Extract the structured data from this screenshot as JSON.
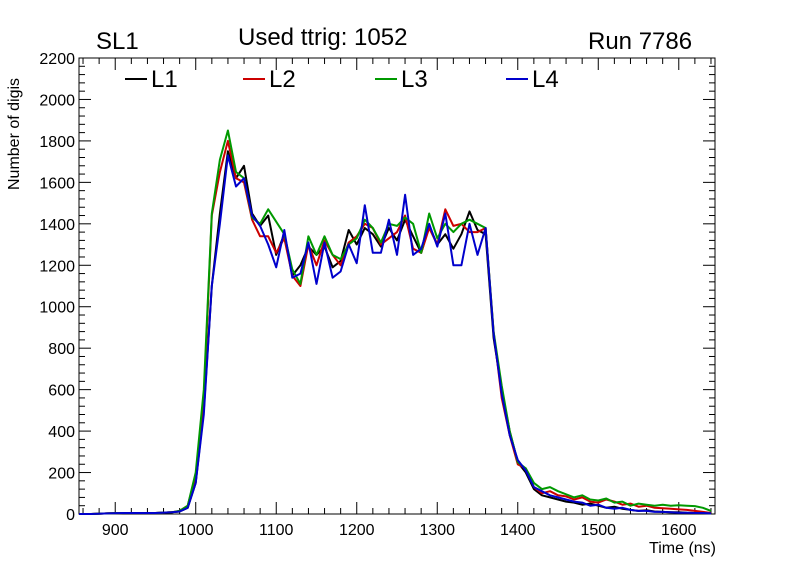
{
  "header": {
    "left": "SL1",
    "center": "Used ttrig: 1052",
    "right": "Run 7786"
  },
  "chart_data": {
    "type": "line",
    "xlabel": "Time (ns)",
    "ylabel": "Number of digis",
    "xlim": [
      855,
      1645
    ],
    "ylim": [
      0,
      2200
    ],
    "xticks": [
      900,
      1000,
      1100,
      1200,
      1300,
      1400,
      1500,
      1600
    ],
    "yticks": [
      0,
      200,
      400,
      600,
      800,
      1000,
      1200,
      1400,
      1600,
      1800,
      2000,
      2200
    ],
    "legend_position": "top-left",
    "series": [
      {
        "name": "L1",
        "color": "#000000",
        "x": [
          855,
          870,
          890,
          910,
          930,
          950,
          970,
          980,
          990,
          1000,
          1010,
          1020,
          1030,
          1040,
          1050,
          1060,
          1070,
          1080,
          1090,
          1100,
          1110,
          1120,
          1130,
          1140,
          1150,
          1160,
          1170,
          1180,
          1190,
          1200,
          1210,
          1220,
          1230,
          1240,
          1250,
          1260,
          1270,
          1280,
          1290,
          1300,
          1310,
          1320,
          1330,
          1340,
          1350,
          1360,
          1370,
          1380,
          1390,
          1400,
          1410,
          1420,
          1430,
          1440,
          1450,
          1460,
          1470,
          1480,
          1490,
          1500,
          1510,
          1520,
          1530,
          1540,
          1550,
          1560,
          1570,
          1580,
          1590,
          1600,
          1610,
          1620,
          1630,
          1640
        ],
        "y": [
          0,
          0,
          3,
          5,
          5,
          5,
          8,
          12,
          30,
          150,
          500,
          1100,
          1450,
          1750,
          1620,
          1680,
          1450,
          1390,
          1440,
          1250,
          1350,
          1150,
          1200,
          1290,
          1250,
          1290,
          1190,
          1220,
          1370,
          1300,
          1380,
          1350,
          1290,
          1380,
          1320,
          1420,
          1340,
          1260,
          1390,
          1300,
          1350,
          1280,
          1350,
          1460,
          1370,
          1350,
          850,
          600,
          400,
          250,
          200,
          120,
          90,
          80,
          70,
          60,
          55,
          45,
          50,
          40,
          30,
          35,
          25,
          20,
          15,
          18,
          12,
          10,
          8,
          8,
          6,
          5,
          5,
          3
        ]
      },
      {
        "name": "L2",
        "color": "#cc0000",
        "x": [
          855,
          870,
          890,
          910,
          930,
          950,
          970,
          980,
          990,
          1000,
          1010,
          1020,
          1030,
          1040,
          1050,
          1060,
          1070,
          1080,
          1090,
          1100,
          1110,
          1120,
          1130,
          1140,
          1150,
          1160,
          1170,
          1180,
          1190,
          1200,
          1210,
          1220,
          1230,
          1240,
          1250,
          1260,
          1270,
          1280,
          1290,
          1300,
          1310,
          1320,
          1330,
          1340,
          1350,
          1360,
          1370,
          1380,
          1390,
          1400,
          1410,
          1420,
          1430,
          1440,
          1450,
          1460,
          1470,
          1480,
          1490,
          1500,
          1510,
          1520,
          1530,
          1540,
          1550,
          1560,
          1570,
          1580,
          1590,
          1600,
          1610,
          1620,
          1630,
          1640
        ],
        "y": [
          0,
          0,
          3,
          5,
          5,
          5,
          8,
          15,
          40,
          180,
          550,
          1440,
          1650,
          1800,
          1620,
          1600,
          1420,
          1340,
          1340,
          1260,
          1330,
          1150,
          1100,
          1300,
          1200,
          1320,
          1250,
          1200,
          1310,
          1340,
          1400,
          1380,
          1300,
          1330,
          1360,
          1440,
          1280,
          1260,
          1380,
          1300,
          1470,
          1390,
          1400,
          1360,
          1360,
          1380,
          880,
          560,
          380,
          240,
          220,
          130,
          100,
          110,
          90,
          85,
          70,
          80,
          60,
          55,
          70,
          60,
          45,
          50,
          35,
          40,
          30,
          28,
          25,
          22,
          20,
          15,
          10,
          5
        ]
      },
      {
        "name": "L3",
        "color": "#009900",
        "x": [
          855,
          870,
          890,
          910,
          930,
          950,
          970,
          980,
          990,
          1000,
          1010,
          1020,
          1030,
          1040,
          1050,
          1060,
          1070,
          1080,
          1090,
          1100,
          1110,
          1120,
          1130,
          1140,
          1150,
          1160,
          1170,
          1180,
          1190,
          1200,
          1210,
          1220,
          1230,
          1240,
          1250,
          1260,
          1270,
          1280,
          1290,
          1300,
          1310,
          1320,
          1330,
          1340,
          1350,
          1360,
          1370,
          1380,
          1390,
          1400,
          1410,
          1420,
          1430,
          1440,
          1450,
          1460,
          1470,
          1480,
          1490,
          1500,
          1510,
          1520,
          1530,
          1540,
          1550,
          1560,
          1570,
          1580,
          1590,
          1600,
          1610,
          1620,
          1630,
          1640
        ],
        "y": [
          0,
          0,
          3,
          5,
          5,
          5,
          8,
          15,
          40,
          200,
          600,
          1450,
          1710,
          1850,
          1650,
          1620,
          1430,
          1400,
          1470,
          1410,
          1350,
          1180,
          1110,
          1340,
          1250,
          1340,
          1250,
          1230,
          1300,
          1330,
          1420,
          1380,
          1310,
          1400,
          1390,
          1430,
          1400,
          1260,
          1450,
          1330,
          1400,
          1360,
          1400,
          1420,
          1400,
          1380,
          880,
          620,
          400,
          250,
          220,
          150,
          120,
          130,
          110,
          95,
          80,
          90,
          70,
          65,
          75,
          55,
          60,
          40,
          50,
          45,
          40,
          45,
          40,
          42,
          40,
          38,
          30,
          15
        ]
      },
      {
        "name": "L4",
        "color": "#0000cc",
        "x": [
          855,
          870,
          890,
          910,
          930,
          950,
          970,
          980,
          990,
          1000,
          1010,
          1020,
          1030,
          1040,
          1050,
          1060,
          1070,
          1080,
          1090,
          1100,
          1110,
          1120,
          1130,
          1140,
          1150,
          1160,
          1170,
          1180,
          1190,
          1200,
          1210,
          1220,
          1230,
          1240,
          1250,
          1260,
          1270,
          1280,
          1290,
          1300,
          1310,
          1320,
          1330,
          1340,
          1350,
          1360,
          1370,
          1380,
          1390,
          1400,
          1410,
          1420,
          1430,
          1440,
          1450,
          1460,
          1470,
          1480,
          1490,
          1500,
          1510,
          1520,
          1530,
          1540,
          1550,
          1560,
          1570,
          1580,
          1590,
          1600,
          1610,
          1620,
          1630,
          1640
        ],
        "y": [
          0,
          0,
          3,
          5,
          5,
          5,
          8,
          12,
          30,
          150,
          480,
          1100,
          1400,
          1730,
          1580,
          1620,
          1440,
          1390,
          1300,
          1190,
          1370,
          1140,
          1160,
          1310,
          1110,
          1310,
          1140,
          1170,
          1300,
          1210,
          1490,
          1260,
          1260,
          1420,
          1250,
          1540,
          1250,
          1280,
          1400,
          1290,
          1450,
          1200,
          1200,
          1400,
          1250,
          1380,
          870,
          580,
          380,
          260,
          210,
          130,
          110,
          90,
          80,
          70,
          60,
          55,
          40,
          45,
          30,
          25,
          30,
          20,
          15,
          15,
          10,
          10,
          8,
          6,
          6,
          5,
          5,
          3
        ]
      }
    ]
  }
}
